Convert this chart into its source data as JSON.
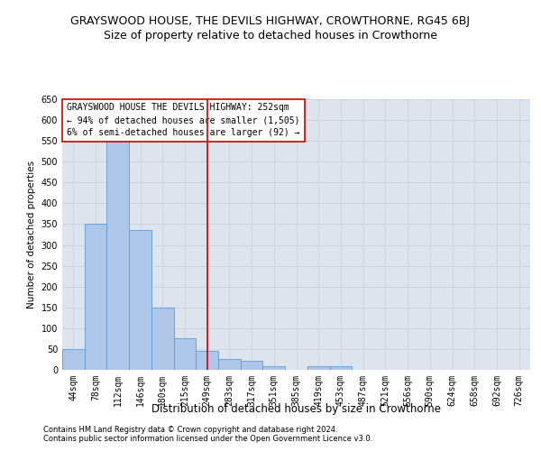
{
  "title": "GRAYSWOOD HOUSE, THE DEVILS HIGHWAY, CROWTHORNE, RG45 6BJ",
  "subtitle": "Size of property relative to detached houses in Crowthorne",
  "xlabel": "Distribution of detached houses by size in Crowthorne",
  "ylabel": "Number of detached properties",
  "footnote1": "Contains HM Land Registry data © Crown copyright and database right 2024.",
  "footnote2": "Contains public sector information licensed under the Open Government Licence v3.0.",
  "annotation_line1": "GRAYSWOOD HOUSE THE DEVILS HIGHWAY: 252sqm",
  "annotation_line2": "← 94% of detached houses are smaller (1,505)",
  "annotation_line3": "6% of semi-detached houses are larger (92) →",
  "bin_labels": [
    "44sqm",
    "78sqm",
    "112sqm",
    "146sqm",
    "180sqm",
    "215sqm",
    "249sqm",
    "283sqm",
    "317sqm",
    "351sqm",
    "385sqm",
    "419sqm",
    "453sqm",
    "487sqm",
    "521sqm",
    "556sqm",
    "590sqm",
    "624sqm",
    "658sqm",
    "692sqm",
    "726sqm"
  ],
  "bar_heights": [
    50,
    350,
    575,
    335,
    150,
    75,
    45,
    25,
    22,
    8,
    0,
    8,
    8,
    1,
    0,
    0,
    0,
    1,
    0,
    0,
    1
  ],
  "bar_color": "#aec6e8",
  "bar_edge_color": "#5b9bd5",
  "red_line_index": 6,
  "red_line_color": "#cc0000",
  "annotation_box_color": "#ffffff",
  "annotation_box_edge": "#cc0000",
  "ylim": [
    0,
    650
  ],
  "yticks": [
    0,
    50,
    100,
    150,
    200,
    250,
    300,
    350,
    400,
    450,
    500,
    550,
    600,
    650
  ],
  "grid_color": "#c8d0db",
  "bg_color": "#dde4ee",
  "title_fontsize": 9,
  "subtitle_fontsize": 9,
  "tick_fontsize": 7,
  "xlabel_fontsize": 8.5,
  "ylabel_fontsize": 7.5,
  "annotation_fontsize": 7,
  "footnote_fontsize": 6
}
